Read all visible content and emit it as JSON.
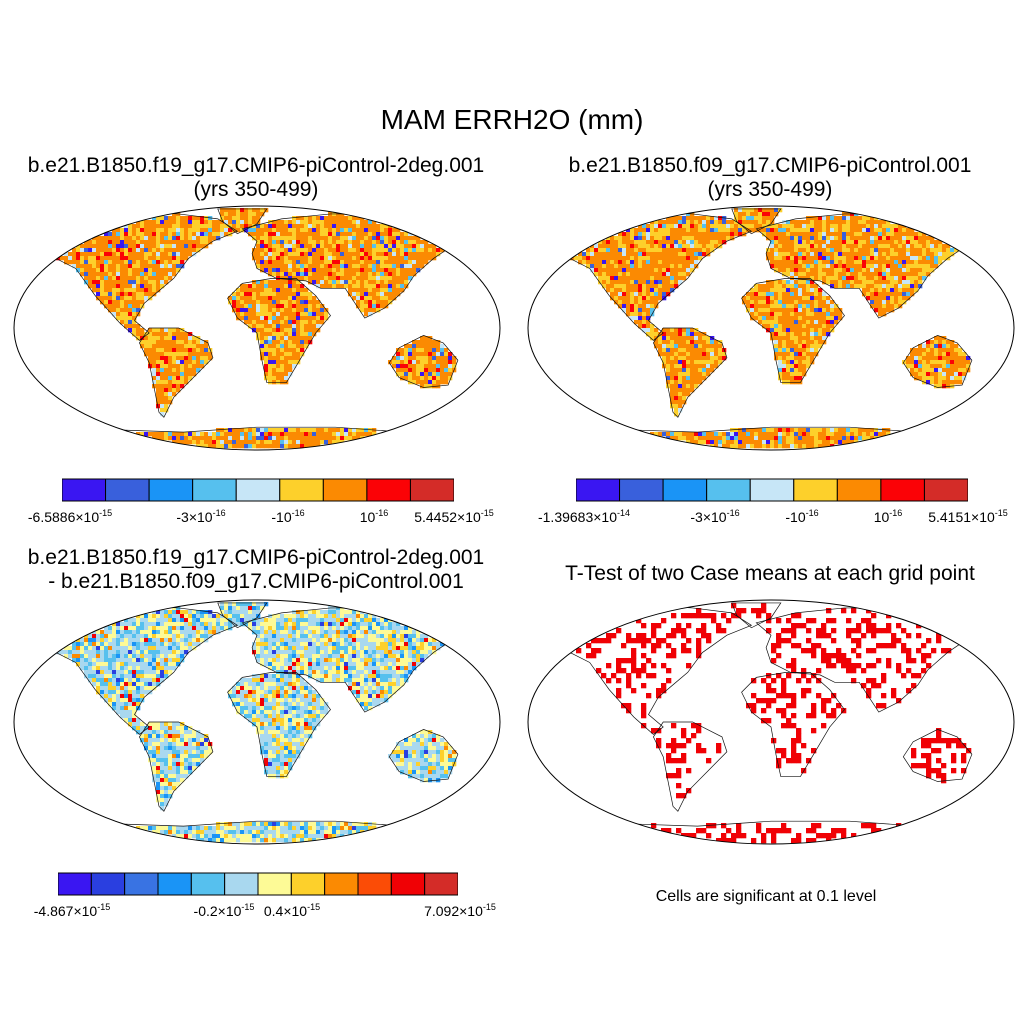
{
  "main_title": "MAM ERRH2O (mm)",
  "chart_data": [
    {
      "type": "heatmap",
      "title": "b.e21.B1850.f19_g17.CMIP6-piControl-2deg.001",
      "subtitle": "(yrs 350-499)",
      "projection": "Robinson",
      "colors": [
        "#3a16f2",
        "#3960dc",
        "#1a94f6",
        "#56c0ee",
        "#c7e6f7",
        "#fdd02b",
        "#fb8a02",
        "#fb0206",
        "#d42c28"
      ],
      "colorbar_labels": [
        {
          "base": "-6.5886×10",
          "exp": "-15"
        },
        {
          "base": "-3×10",
          "exp": "-16"
        },
        {
          "base": "-10",
          "exp": "-16"
        },
        {
          "base": "10",
          "exp": "-16"
        },
        {
          "base": "5.4452×10",
          "exp": "-15"
        }
      ]
    },
    {
      "type": "heatmap",
      "title": "b.e21.B1850.f09_g17.CMIP6-piControl.001",
      "subtitle": "(yrs 350-499)",
      "projection": "Robinson",
      "colors": [
        "#3a16f2",
        "#3960dc",
        "#1a94f6",
        "#56c0ee",
        "#c7e6f7",
        "#fdd02b",
        "#fb8a02",
        "#fb0206",
        "#d42c28"
      ],
      "colorbar_labels": [
        {
          "base": "-1.39683×10",
          "exp": "-14"
        },
        {
          "base": "-3×10",
          "exp": "-16"
        },
        {
          "base": "-10",
          "exp": "-16"
        },
        {
          "base": "10",
          "exp": "-16"
        },
        {
          "base": "5.4151×10",
          "exp": "-15"
        }
      ]
    },
    {
      "type": "heatmap",
      "title": "b.e21.B1850.f19_g17.CMIP6-piControl-2deg.001",
      "subtitle": "- b.e21.B1850.f09_g17.CMIP6-piControl.001",
      "projection": "Robinson",
      "colors": [
        "#3a16f2",
        "#2a3fe0",
        "#3973e3",
        "#1a94f6",
        "#56c0ee",
        "#a9d8ef",
        "#fdfa96",
        "#fdd02b",
        "#fb8a02",
        "#fb4c06",
        "#f00105",
        "#d42c28"
      ],
      "colorbar_labels": [
        {
          "base": "-4.867×10",
          "exp": "-15"
        },
        {
          "base": "-0.2×10",
          "exp": "-15"
        },
        {
          "base": "0.4×10",
          "exp": "-15"
        },
        {
          "base": "7.092×10",
          "exp": "-15"
        }
      ]
    },
    {
      "type": "heatmap",
      "title": "T-Test of two Case means at each grid point",
      "projection": "Robinson",
      "significant_color": "#f00105",
      "note": "Cells are significant at 0.1 level"
    }
  ]
}
